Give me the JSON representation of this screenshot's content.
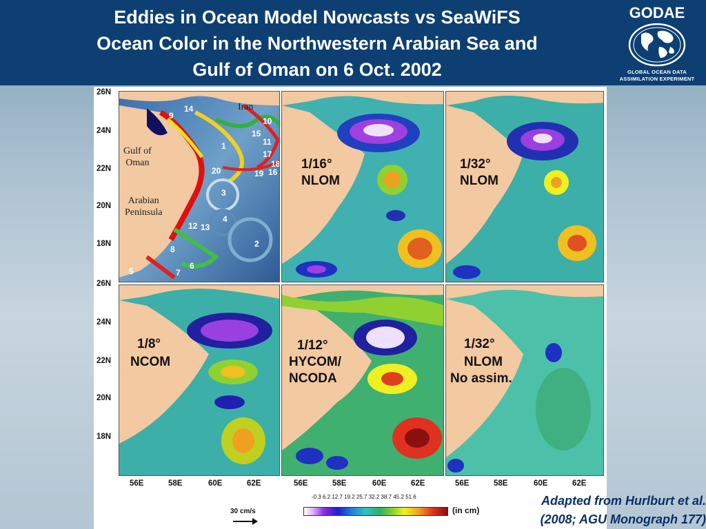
{
  "title": {
    "line1": "Eddies in Ocean Model Nowcasts vs SeaWiFS",
    "line2": "Ocean Color in the Northwestern Arabian Sea and",
    "line3": "Gulf of Oman on 6 Oct. 2002"
  },
  "logo": {
    "name": "GODAE",
    "sub1": "GLOBAL OCEAN DATA",
    "sub2": "ASSIMILATION EXPERIMENT",
    "icon": "globe-icon"
  },
  "axes": {
    "y_ticks": [
      "26N",
      "24N",
      "22N",
      "20N",
      "18N"
    ],
    "x_ticks": [
      "56E",
      "58E",
      "60E",
      "62E"
    ]
  },
  "panels": {
    "seawifs": {
      "eddy_numbers": [
        "9",
        "14",
        "10",
        "15",
        "11",
        "1",
        "17",
        "18",
        "20",
        "19",
        "16",
        "3",
        "4",
        "12",
        "13",
        "2",
        "8",
        "5",
        "7",
        "6"
      ],
      "labels": {
        "iran": "Iran",
        "gulf": "Gulf of\nOman",
        "arabia": "Arabian\nPeninsula"
      }
    },
    "p2": {
      "line1": "1/16°",
      "line2": "NLOM"
    },
    "p3": {
      "line1": "1/32°",
      "line2": "NLOM"
    },
    "p4": {
      "line1": "1/8°",
      "line2": "NCOM"
    },
    "p5": {
      "line1": "1/12°",
      "line2": "HYCOM/",
      "line3": "NCODA"
    },
    "p6": {
      "line1": "1/32°",
      "line2": "NLOM",
      "line3": "No assim."
    }
  },
  "colorbar": {
    "values": "-0.3  6.2  12.7  19.2  25.7  32.2  38.7  45.2  51.6",
    "unit": "(in cm)"
  },
  "vector_scale": {
    "label": "30 cm/s"
  },
  "credit": {
    "line1": "Adapted from Hurlburt et al.",
    "line2": "(2008; AGU Monograph 177)"
  },
  "colors": {
    "header_bg": "#0d3f73",
    "land": "#f2c9a0",
    "credit_text": "#0c2f6a"
  }
}
